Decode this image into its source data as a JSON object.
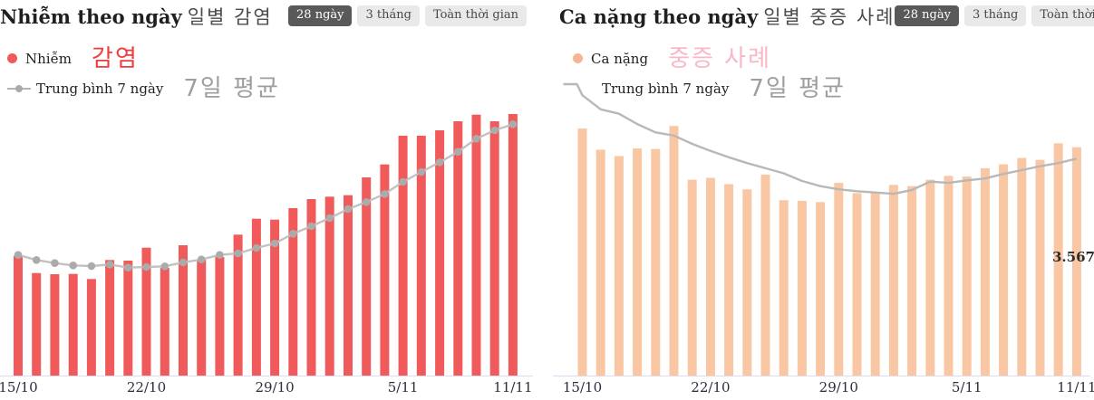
{
  "panels": [
    {
      "id": "daily-infections",
      "title": "Nhiễm theo ngày",
      "title_korean": "일별 감염",
      "range_buttons": [
        {
          "label": "28 ngày",
          "active": true
        },
        {
          "label": "3 tháng",
          "active": false
        },
        {
          "label": "Toàn thời gian",
          "active": false
        }
      ],
      "legend": [
        {
          "label": "Nhiễm",
          "korean": "감염",
          "korean_color": "#f23b3b",
          "marker_color": "#f05a5a"
        },
        {
          "label": "Trung bình 7 ngày",
          "korean": "7일 평균",
          "korean_color": "#9e9e9e",
          "marker_color": "#b0b0b0"
        }
      ]
    },
    {
      "id": "daily-severe-cases",
      "title": "Ca nặng theo ngày",
      "title_korean": "일별 중증 사례",
      "range_buttons": [
        {
          "label": "28 ngày",
          "active": true
        },
        {
          "label": "3 tháng",
          "active": false
        },
        {
          "label": "Toàn thời gian",
          "active": false
        }
      ],
      "legend": [
        {
          "label": "Ca nặng",
          "korean": "중증 사례",
          "korean_color": "#f8b8c6",
          "marker_color": "#f6b493"
        },
        {
          "label": "Trung bình 7 ngày",
          "korean": "7일 평균",
          "korean_color": "#9e9e9e",
          "marker_color": "#b4b4b4"
        }
      ]
    }
  ],
  "chart_data": [
    {
      "type": "bar",
      "title": "Nhiễm theo ngày (일별 감염)",
      "xlabel": "",
      "ylabel": "",
      "ylim": [
        0,
        9000
      ],
      "grid": false,
      "legend_position": "top-left",
      "x": [
        "15/10",
        "16/10",
        "17/10",
        "18/10",
        "19/10",
        "20/10",
        "21/10",
        "22/10",
        "23/10",
        "24/10",
        "25/10",
        "26/10",
        "27/10",
        "28/10",
        "29/10",
        "30/10",
        "31/10",
        "1/11",
        "2/11",
        "3/11",
        "4/11",
        "5/11",
        "6/11",
        "7/11",
        "8/11",
        "9/11",
        "10/11",
        "11/11"
      ],
      "x_tick_labels": [
        "15/10",
        "22/10",
        "29/10",
        "5/11",
        "11/11"
      ],
      "x_tick_indices": [
        0,
        7,
        14,
        21,
        27
      ],
      "axis_color": "#dcdcee",
      "series": [
        {
          "name": "Nhiễm",
          "type": "bar",
          "color": "#f05a5a",
          "values": [
            3970,
            3400,
            3360,
            3370,
            3200,
            3830,
            3810,
            4240,
            3570,
            4320,
            3840,
            3930,
            4670,
            5200,
            5170,
            5550,
            5850,
            5930,
            5980,
            6570,
            7000,
            7950,
            7950,
            8130,
            8430,
            8650,
            8430,
            8670
          ]
        },
        {
          "name": "Trung bình 7 ngày",
          "type": "line",
          "color": "#c2c2c2",
          "markers": "circle",
          "marker_color": "#ababab",
          "values": [
            4000,
            3830,
            3730,
            3650,
            3630,
            3680,
            3580,
            3600,
            3620,
            3750,
            3850,
            4000,
            4050,
            4230,
            4380,
            4700,
            4950,
            5220,
            5520,
            5750,
            6020,
            6420,
            6750,
            7070,
            7420,
            7850,
            8130,
            8330
          ]
        }
      ]
    },
    {
      "type": "bar",
      "title": "Ca nặng theo ngày (일별 중증 사례)",
      "xlabel": "",
      "ylabel": "",
      "ylim": [
        0,
        4242
      ],
      "grid": false,
      "legend_position": "top-left",
      "x": [
        "15/10",
        "16/10",
        "17/10",
        "18/10",
        "19/10",
        "20/10",
        "21/10",
        "22/10",
        "23/10",
        "24/10",
        "25/10",
        "26/10",
        "27/10",
        "28/10",
        "29/10",
        "30/10",
        "31/10",
        "1/11",
        "2/11",
        "3/11",
        "4/11",
        "5/11",
        "6/11",
        "7/11",
        "8/11",
        "9/11",
        "10/11",
        "11/11"
      ],
      "x_tick_labels": [
        "15/10",
        "22/10",
        "29/10",
        "5/11",
        "11/11"
      ],
      "x_tick_indices": [
        0,
        7,
        14,
        21,
        27
      ],
      "axis_color": "#dcdcee",
      "annotation": {
        "label": "3.567",
        "value": 3567,
        "refers_to": "11/11"
      },
      "series": [
        {
          "name": "Ca nặng",
          "type": "bar",
          "color": "#fac7a4",
          "values": [
            3860,
            3530,
            3430,
            3550,
            3540,
            3900,
            3060,
            3090,
            2990,
            2910,
            3140,
            2740,
            2730,
            2710,
            3010,
            2850,
            2850,
            2980,
            2960,
            3060,
            3120,
            3110,
            3240,
            3300,
            3400,
            3370,
            3630,
            3567
          ]
        },
        {
          "name": "Trung bình 7 ngày",
          "type": "line",
          "color": "#b8b8b8",
          "markers": null,
          "marker_color": null,
          "values": [
            4380,
            4160,
            4090,
            3930,
            3800,
            3750,
            3620,
            3510,
            3410,
            3320,
            3240,
            3160,
            3040,
            2960,
            2910,
            2880,
            2860,
            2840,
            2900,
            3030,
            3010,
            3050,
            3080,
            3150,
            3210,
            3270,
            3320,
            3390
          ]
        }
      ]
    }
  ]
}
